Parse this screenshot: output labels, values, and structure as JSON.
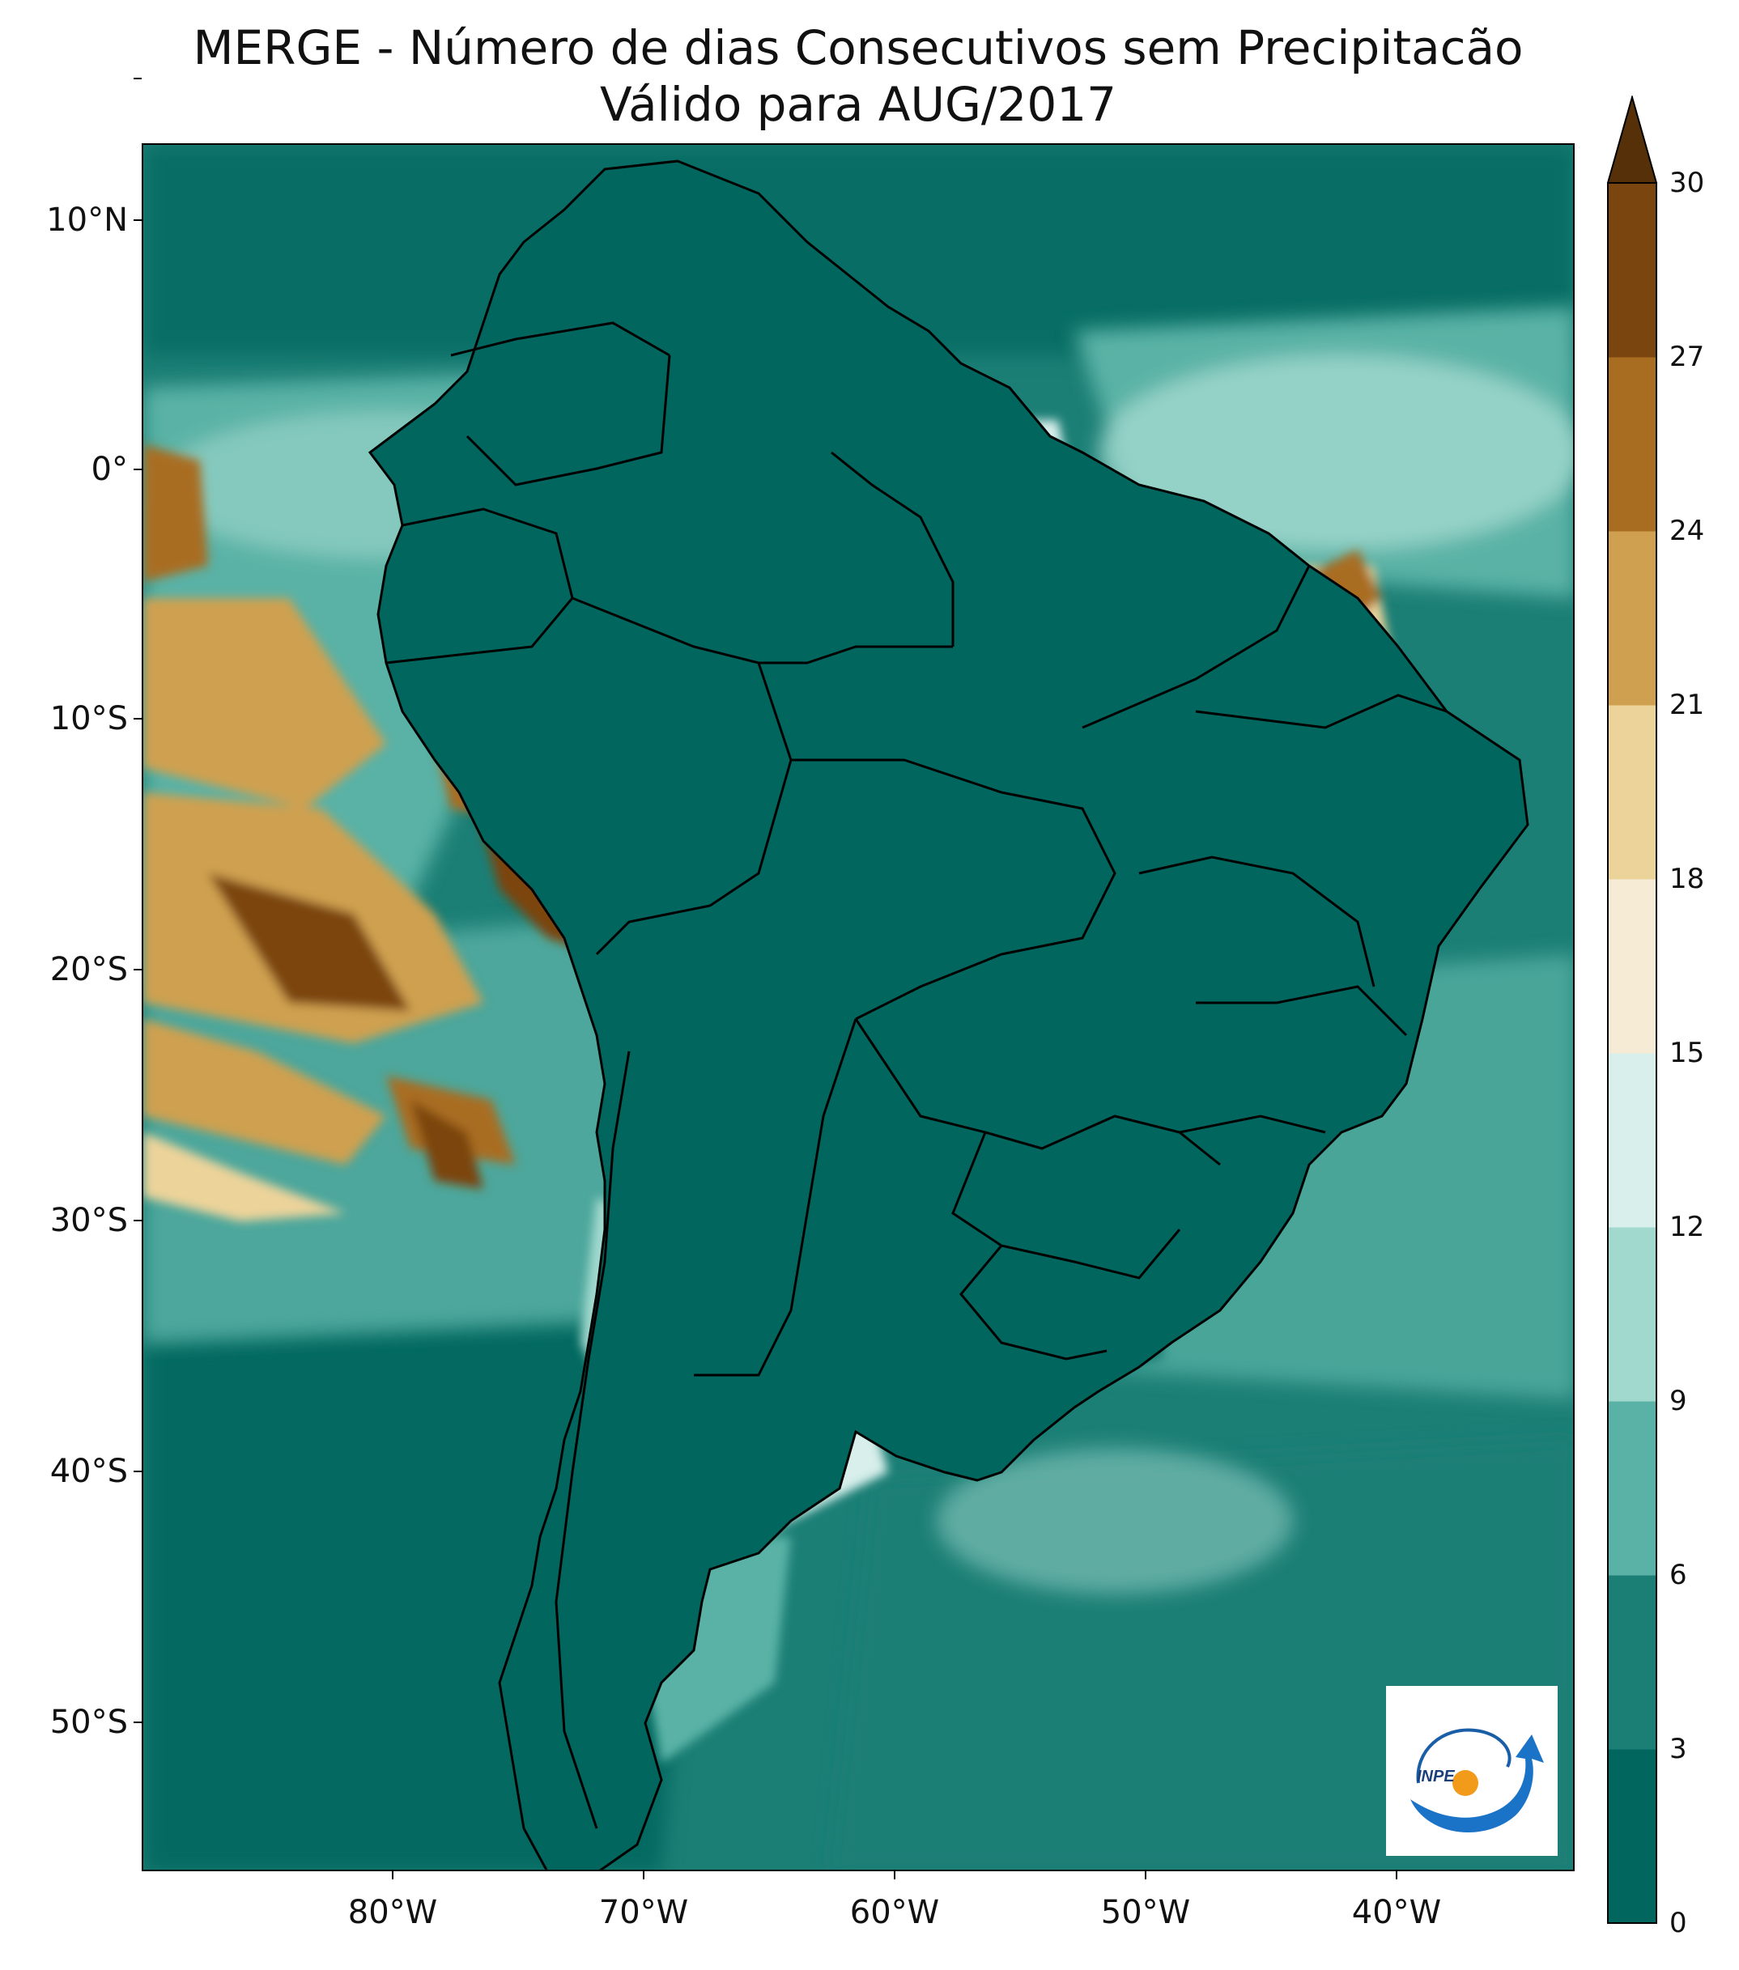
{
  "title": {
    "line1": "MERGE - Número de dias Consecutivos sem Precipitacão",
    "line2": "Válido para AUG/2017"
  },
  "axes": {
    "lat_labels": [
      "10°N",
      "0°",
      "10°S",
      "20°S",
      "30°S",
      "40°S",
      "50°S"
    ],
    "lon_labels": [
      "80°W",
      "70°W",
      "60°W",
      "50°W",
      "40°W"
    ]
  },
  "colorbar": {
    "ticks": [
      "0",
      "3",
      "6",
      "9",
      "12",
      "15",
      "18",
      "21",
      "24",
      "27",
      "30"
    ],
    "colors": [
      "#01665e",
      "#1c7f76",
      "#5ab2a6",
      "#a2d9cf",
      "#d8efeb",
      "#f6ecd6",
      "#ecd39a",
      "#cfa050",
      "#a96d22",
      "#7b4510",
      "#563008"
    ],
    "extend": "max"
  },
  "logo": {
    "text": "INPE",
    "icon": "inpe-logo-icon"
  }
}
